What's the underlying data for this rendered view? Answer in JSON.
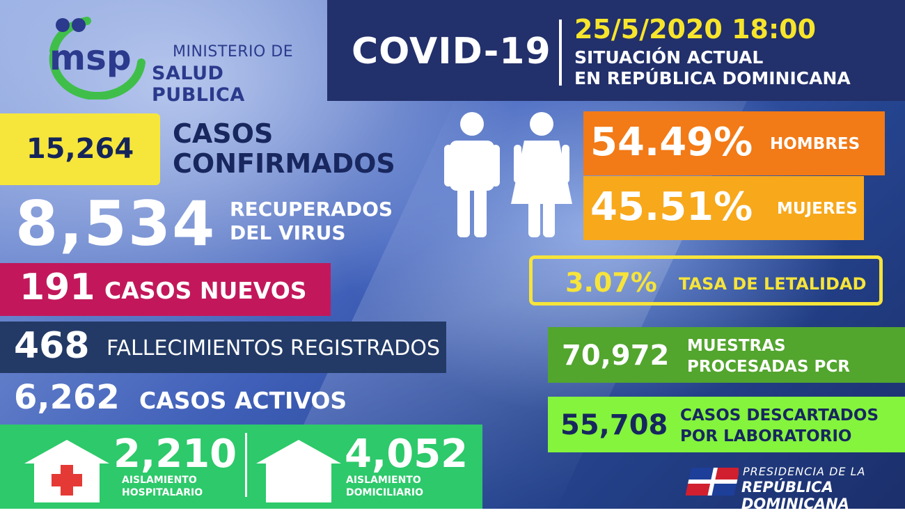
{
  "logo": {
    "mark_text": "msp",
    "line1": "MINISTERIO DE",
    "line2": "SALUD PUBLICA",
    "colors": {
      "blue": "#2b3a8c",
      "green": "#3fbf4a"
    }
  },
  "header": {
    "title": "COVID-19",
    "datetime": "25/5/2020 18:00",
    "subtitle_line1": "SITUACIÓN ACTUAL",
    "subtitle_line2": "EN REPÚBLICA DOMINICANA"
  },
  "stats": {
    "confirmed": {
      "value": "15,264",
      "label_line1": "CASOS",
      "label_line2": "CONFIRMADOS"
    },
    "recovered": {
      "value": "8,534",
      "label_line1": "RECUPERADOS",
      "label_line2": "DEL VIRUS"
    },
    "new_cases": {
      "value": "191",
      "label": "CASOS NUEVOS"
    },
    "deaths": {
      "value": "468",
      "label": "FALLECIMIENTOS REGISTRADOS"
    },
    "active": {
      "value": "6,262",
      "label": "CASOS ACTIVOS"
    },
    "hospital_isolation": {
      "value": "2,210",
      "label_line1": "AISLAMIENTO",
      "label_line2": "HOSPITALARIO"
    },
    "home_isolation": {
      "value": "4,052",
      "label_line1": "AISLAMIENTO",
      "label_line2": "DOMICILIARIO"
    },
    "men": {
      "value": "54.49%",
      "label": "HOMBRES"
    },
    "women": {
      "value": "45.51%",
      "label": "MUJERES"
    },
    "lethality": {
      "value": "3.07%",
      "label": "TASA DE LETALIDAD"
    },
    "pcr_samples": {
      "value": "70,972",
      "label_line1": "MUESTRAS",
      "label_line2": "PROCESADAS PCR"
    },
    "discarded": {
      "value": "55,708",
      "label_line1": "CASOS DESCARTADOS",
      "label_line2": "POR LABORATORIO"
    }
  },
  "icons": [
    "man-icon",
    "woman-icon",
    "hospital-icon",
    "house-icon",
    "dominican-flag-icon"
  ],
  "footer": {
    "line1": "PRESIDENCIA DE LA",
    "line2": "REPÚBLICA DOMINICANA"
  }
}
